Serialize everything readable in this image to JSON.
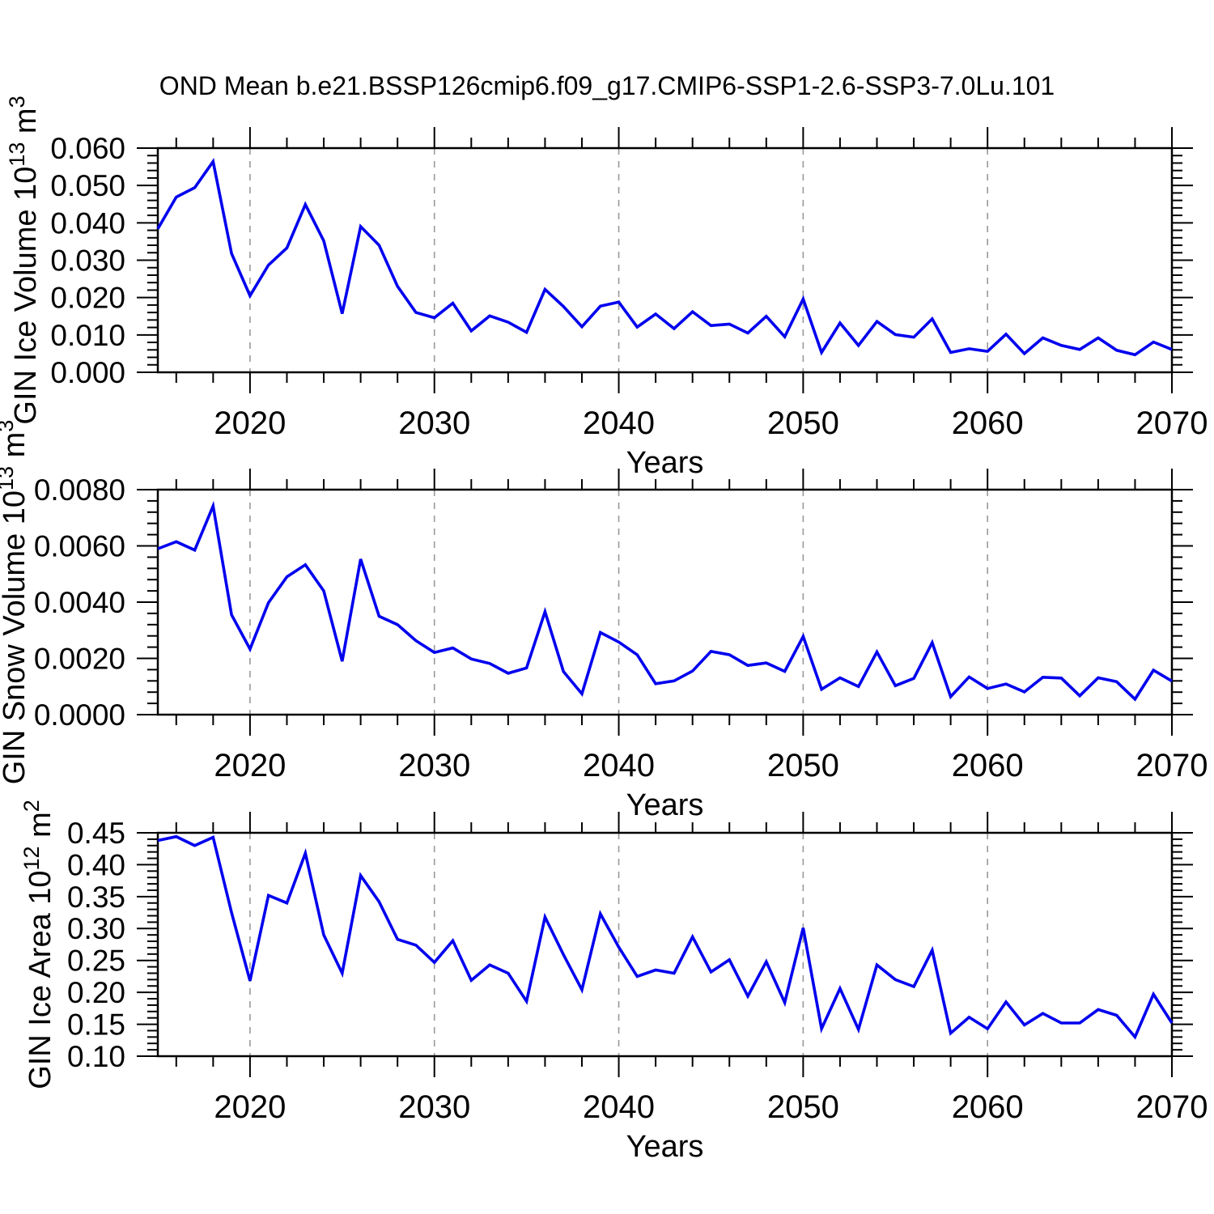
{
  "title": "OND Mean b.e21.BSSP126cmip6.f09_g17.CMIP6-SSP1-2.6-SSP3-7.0Lu.101",
  "colors": {
    "line": "#0000ee",
    "axis": "#000000",
    "grid": "#999999",
    "background": "#ffffff"
  },
  "chart_data": {
    "type": "line",
    "xlabel": "Years",
    "x_years": [
      2015,
      2016,
      2017,
      2018,
      2019,
      2020,
      2021,
      2022,
      2023,
      2024,
      2025,
      2026,
      2027,
      2028,
      2029,
      2030,
      2031,
      2032,
      2033,
      2034,
      2035,
      2036,
      2037,
      2038,
      2039,
      2040,
      2041,
      2042,
      2043,
      2044,
      2045,
      2046,
      2047,
      2048,
      2049,
      2050,
      2051,
      2052,
      2053,
      2054,
      2055,
      2056,
      2057,
      2058,
      2059,
      2060,
      2061,
      2062,
      2063,
      2064,
      2065,
      2066,
      2067,
      2068,
      2069,
      2070
    ],
    "xlim": [
      2015,
      2070
    ],
    "x_major_ticks": [
      2020,
      2030,
      2040,
      2050,
      2060,
      2070
    ],
    "x_minor_step": 2,
    "grid_x": [
      2020,
      2030,
      2040,
      2050,
      2060
    ],
    "grid_style": "dashed",
    "legend": "none",
    "panels": [
      {
        "name": "gin-ice-volume",
        "ylabel": "GIN Ice Volume 10^13 m^3",
        "ylabel_parts": [
          {
            "t": "GIN Ice Volume 10"
          },
          {
            "t": "13",
            "sup": true
          },
          {
            "t": " m"
          },
          {
            "t": "3",
            "sup": true
          }
        ],
        "ylim": [
          0.0,
          0.06
        ],
        "ytick_values": [
          0.0,
          0.01,
          0.02,
          0.03,
          0.04,
          0.05,
          0.06
        ],
        "ytick_labels": [
          "0.000",
          "0.010",
          "0.020",
          "0.030",
          "0.040",
          "0.050",
          "0.060"
        ],
        "y_minor_step": 0.002,
        "values": [
          0.0384,
          0.0469,
          0.0494,
          0.0564,
          0.0318,
          0.0205,
          0.0287,
          0.0333,
          0.0449,
          0.0352,
          0.0157,
          0.039,
          0.034,
          0.023,
          0.016,
          0.0146,
          0.0185,
          0.0111,
          0.0151,
          0.0134,
          0.0107,
          0.0222,
          0.0176,
          0.0122,
          0.0177,
          0.0188,
          0.0121,
          0.0156,
          0.0117,
          0.0162,
          0.0125,
          0.0129,
          0.0105,
          0.015,
          0.0095,
          0.0196,
          0.0053,
          0.0132,
          0.0072,
          0.0136,
          0.0101,
          0.0094,
          0.0143,
          0.0053,
          0.0063,
          0.0056,
          0.0102,
          0.005,
          0.0092,
          0.0072,
          0.0061,
          0.0092,
          0.0059,
          0.0047,
          0.0081,
          0.0061
        ]
      },
      {
        "name": "gin-snow-volume",
        "ylabel": "GIN Snow Volume 10^13 m^3",
        "ylabel_parts": [
          {
            "t": "GIN Snow Volume 10"
          },
          {
            "t": "13",
            "sup": true
          },
          {
            "t": " m"
          },
          {
            "t": "3",
            "sup": true
          }
        ],
        "ylim": [
          0.0,
          0.008
        ],
        "ytick_values": [
          0.0,
          0.002,
          0.004,
          0.006,
          0.008
        ],
        "ytick_labels": [
          "0.0000",
          "0.0020",
          "0.0040",
          "0.0060",
          "0.0080"
        ],
        "y_minor_step": 0.0004,
        "values": [
          0.0059,
          0.00615,
          0.00585,
          0.00742,
          0.00355,
          0.00233,
          0.00398,
          0.0049,
          0.00533,
          0.0044,
          0.0019,
          0.00553,
          0.0035,
          0.0032,
          0.00263,
          0.00221,
          0.00237,
          0.00198,
          0.00182,
          0.00147,
          0.00166,
          0.00366,
          0.00153,
          0.00074,
          0.00292,
          0.00258,
          0.00213,
          0.0011,
          0.0012,
          0.00155,
          0.00225,
          0.00213,
          0.00175,
          0.00184,
          0.00154,
          0.00278,
          0.0009,
          0.00131,
          0.001,
          0.00223,
          0.00103,
          0.00129,
          0.00256,
          0.00064,
          0.00134,
          0.00093,
          0.00109,
          0.00081,
          0.00133,
          0.0013,
          0.00067,
          0.00131,
          0.00117,
          0.00055,
          0.00158,
          0.00119
        ]
      },
      {
        "name": "gin-ice-area",
        "ylabel": "GIN Ice Area 10^12 m^2",
        "ylabel_parts": [
          {
            "t": "GIN Ice Area 10"
          },
          {
            "t": "12",
            "sup": true
          },
          {
            "t": " m"
          },
          {
            "t": "2",
            "sup": true
          }
        ],
        "ylim": [
          0.1,
          0.45
        ],
        "ytick_values": [
          0.1,
          0.15,
          0.2,
          0.25,
          0.3,
          0.35,
          0.4,
          0.45
        ],
        "ytick_labels": [
          "0.10",
          "0.15",
          "0.20",
          "0.25",
          "0.30",
          "0.35",
          "0.40",
          "0.45"
        ],
        "y_minor_step": 0.01,
        "values": [
          0.438,
          0.444,
          0.43,
          0.443,
          0.325,
          0.218,
          0.352,
          0.34,
          0.418,
          0.29,
          0.23,
          0.383,
          0.342,
          0.283,
          0.274,
          0.247,
          0.281,
          0.219,
          0.243,
          0.23,
          0.186,
          0.318,
          0.259,
          0.204,
          0.323,
          0.271,
          0.225,
          0.235,
          0.23,
          0.287,
          0.232,
          0.251,
          0.194,
          0.248,
          0.184,
          0.301,
          0.143,
          0.206,
          0.142,
          0.243,
          0.22,
          0.209,
          0.266,
          0.136,
          0.161,
          0.143,
          0.185,
          0.149,
          0.167,
          0.152,
          0.152,
          0.173,
          0.164,
          0.13,
          0.197,
          0.152
        ]
      }
    ]
  }
}
